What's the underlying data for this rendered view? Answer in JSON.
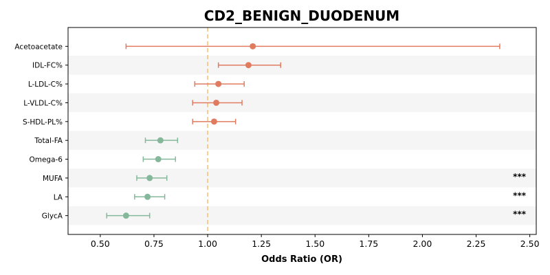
{
  "chart_data": {
    "type": "forest",
    "title": "CD2_BENIGN_DUODENUM",
    "xlabel": "Odds Ratio (OR)",
    "ylabel": "",
    "xlim": [
      0.35,
      2.53
    ],
    "xticks": [
      "0.50",
      "0.75",
      "1.00",
      "1.25",
      "1.50",
      "1.75",
      "2.00",
      "2.25",
      "2.50"
    ],
    "reference_line": 1.0,
    "colors": {
      "positive": "#e07b5f",
      "negative": "#85b89a",
      "reference": "#f2c27d",
      "band": "#f5f5f5"
    },
    "rows": [
      {
        "label": "Acetoacetate",
        "or": 1.21,
        "lo": 0.62,
        "hi": 2.36,
        "sig": "",
        "dir": "positive"
      },
      {
        "label": "IDL-FC%",
        "or": 1.19,
        "lo": 1.05,
        "hi": 1.34,
        "sig": "",
        "dir": "positive"
      },
      {
        "label": "L-LDL-C%",
        "or": 1.05,
        "lo": 0.94,
        "hi": 1.17,
        "sig": "",
        "dir": "positive"
      },
      {
        "label": "L-VLDL-C%",
        "or": 1.04,
        "lo": 0.93,
        "hi": 1.16,
        "sig": "",
        "dir": "positive"
      },
      {
        "label": "S-HDL-PL%",
        "or": 1.03,
        "lo": 0.93,
        "hi": 1.13,
        "sig": "",
        "dir": "positive"
      },
      {
        "label": "Total-FA",
        "or": 0.78,
        "lo": 0.71,
        "hi": 0.86,
        "sig": "",
        "dir": "negative"
      },
      {
        "label": "Omega-6",
        "or": 0.77,
        "lo": 0.7,
        "hi": 0.85,
        "sig": "",
        "dir": "negative"
      },
      {
        "label": "MUFA",
        "or": 0.73,
        "lo": 0.67,
        "hi": 0.81,
        "sig": "***",
        "dir": "negative"
      },
      {
        "label": "LA",
        "or": 0.72,
        "lo": 0.66,
        "hi": 0.8,
        "sig": "***",
        "dir": "negative"
      },
      {
        "label": "GlycA",
        "or": 0.62,
        "lo": 0.53,
        "hi": 0.73,
        "sig": "***",
        "dir": "negative"
      }
    ]
  }
}
